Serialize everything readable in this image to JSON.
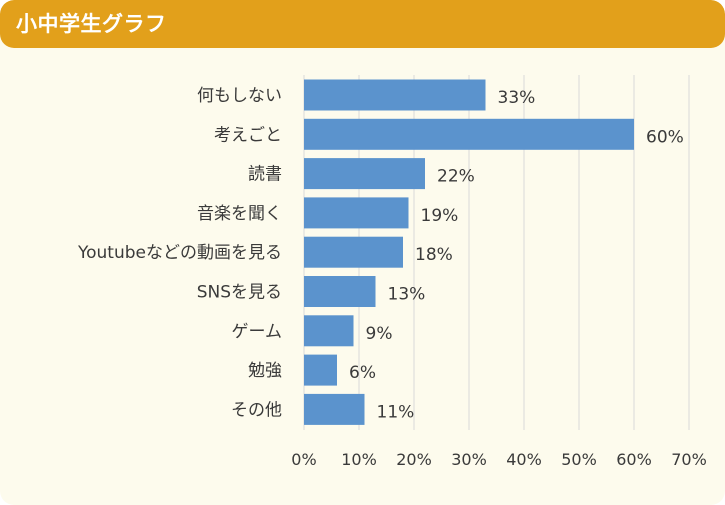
{
  "header": {
    "title": "小中学生グラフ"
  },
  "colors": {
    "header_bg": "#e2a01b",
    "panel_bg": "#fdfbed",
    "bar": "#5b93cd",
    "grid": "#d9d9d9"
  },
  "chart_data": {
    "type": "bar",
    "orientation": "horizontal",
    "title": "小中学生グラフ",
    "categories": [
      "何もしない",
      "考えごと",
      "読書",
      "音楽を聞く",
      "Youtubeなどの動画を見る",
      "SNSを見る",
      "ゲーム",
      "勉強",
      "その他"
    ],
    "values": [
      33,
      60,
      22,
      19,
      18,
      13,
      9,
      6,
      11
    ],
    "data_labels": [
      "33%",
      "60%",
      "22%",
      "19%",
      "18%",
      "13%",
      "9%",
      "6%",
      "11%"
    ],
    "xlim": [
      0,
      70
    ],
    "x_ticks": [
      "0%",
      "10%",
      "20%",
      "30%",
      "40%",
      "50%",
      "60%",
      "70%"
    ],
    "xlabel": "",
    "ylabel": "",
    "grid": true,
    "legend": "none"
  }
}
